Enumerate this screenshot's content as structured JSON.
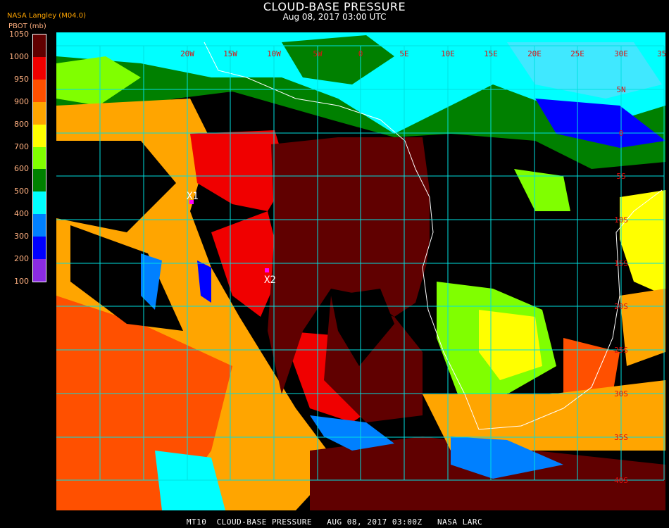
{
  "header": {
    "title": "CLOUD-BASE PRESSURE",
    "datetime": "Aug 08, 2017 03:00 UTC",
    "organization": "NASA Langley (M04.0)",
    "unit_label": "PBOT (mb)"
  },
  "legend": {
    "ticks": [
      "1050",
      "1000",
      "950",
      "900",
      "800",
      "700",
      "600",
      "500",
      "400",
      "300",
      "200",
      "100"
    ],
    "colors": [
      "#600000",
      "#f00000",
      "#ff5000",
      "#ffa500",
      "#ffff00",
      "#80ff00",
      "#008000",
      "#00ffff",
      "#0080ff",
      "#0000ff",
      "#8a2be2"
    ]
  },
  "map": {
    "grid_color": "#00e0e0",
    "coast_color": "#ffffff",
    "lon_labels": [
      "20W",
      "15W",
      "10W",
      "5W",
      "0",
      "5E",
      "10E",
      "15E",
      "20E",
      "25E",
      "30E",
      "35E"
    ],
    "lat_labels": [
      "5N",
      "0",
      "5S",
      "10S",
      "15S",
      "20S",
      "25S",
      "30S",
      "35S",
      "40S"
    ],
    "markers": [
      {
        "label": "X1",
        "color": "#ff00ff"
      },
      {
        "label": "X2",
        "color": "#ff00ff"
      }
    ]
  },
  "footer": {
    "caption": "MT10  CLOUD-BASE PRESSURE   AUG 08, 2017 03:00Z   NASA LARC"
  }
}
